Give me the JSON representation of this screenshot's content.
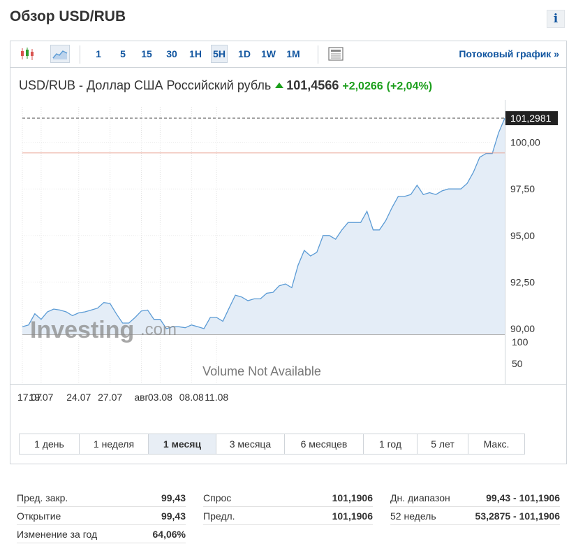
{
  "page": {
    "title": "Обзор USD/RUB",
    "info_label": "i"
  },
  "toolbar": {
    "intervals": [
      "1",
      "5",
      "15",
      "30",
      "1H",
      "5H",
      "1D",
      "1W",
      "1M"
    ],
    "active_interval": "5H",
    "stream_link": "Потоковый график »",
    "icons": [
      "candlestick-icon",
      "area-chart-icon",
      "news-icon"
    ]
  },
  "quote": {
    "name": "USD/RUB - Доллар США Российский рубль",
    "price": "101,4566",
    "change": "+2,0266",
    "change_pct": "(+2,04%)",
    "direction": "up"
  },
  "chart_data": {
    "type": "area",
    "x_labels": [
      "17.07",
      "19.07",
      "24.07",
      "27.07",
      "авг",
      "03.08",
      "08.08",
      "11.08"
    ],
    "x_label_index": [
      0,
      3,
      9,
      14,
      19,
      22,
      27,
      31
    ],
    "values": [
      90.1,
      90.2,
      90.8,
      90.5,
      90.9,
      91.05,
      91.0,
      90.9,
      90.7,
      90.85,
      90.9,
      91.0,
      91.1,
      91.4,
      91.35,
      90.8,
      90.3,
      90.3,
      90.6,
      90.95,
      91.0,
      90.5,
      90.5,
      90.0,
      90.1,
      90.1,
      90.05,
      90.2,
      90.1,
      90.0,
      90.6,
      90.6,
      90.4,
      91.1,
      91.8,
      91.7,
      91.5,
      91.6,
      91.6,
      91.9,
      91.95,
      92.3,
      92.4,
      92.2,
      93.4,
      94.2,
      93.9,
      94.1,
      95.0,
      95.0,
      94.8,
      95.3,
      95.7,
      95.7,
      95.7,
      96.3,
      95.3,
      95.3,
      95.8,
      96.5,
      97.1,
      97.1,
      97.2,
      97.7,
      97.2,
      97.3,
      97.2,
      97.4,
      97.5,
      97.5,
      97.5,
      97.8,
      98.4,
      99.2,
      99.4,
      99.4,
      100.5,
      101.2981
    ],
    "ylim": [
      89.7,
      101.9
    ],
    "y_ticks": [
      "100,00",
      "97,50",
      "95,00",
      "92,50",
      "90,00"
    ],
    "y_tick_values": [
      100.0,
      97.5,
      95.0,
      92.5,
      90.0
    ],
    "last_value_label": "101,2981",
    "reference_line": 99.43,
    "volume_ticks": [
      "100",
      "50"
    ],
    "volume_note": "Volume Not Available",
    "watermark_main": "Investing",
    "watermark_suffix": ".com",
    "colors": {
      "line": "#5b9bd5",
      "fill": "#e4edf7",
      "reference": "#e8a090",
      "last_label_bg": "#222222"
    }
  },
  "periods": {
    "items": [
      "1 день",
      "1 неделя",
      "1 месяц",
      "3 месяца",
      "6 месяцев",
      "1 год",
      "5 лет",
      "Макс."
    ],
    "active": "1 месяц"
  },
  "stats": {
    "col1": [
      {
        "label": "Пред. закр.",
        "value": "99,43"
      },
      {
        "label": "Открытие",
        "value": "99,43"
      },
      {
        "label": "Изменение за год",
        "value": "64,06%"
      }
    ],
    "col2": [
      {
        "label": "Спрос",
        "value": "101,1906"
      },
      {
        "label": "Предл.",
        "value": "101,1906"
      }
    ],
    "col3": [
      {
        "label": "Дн. диапазон",
        "value": "99,43 - 101,1906"
      },
      {
        "label": "52 недель",
        "value": "53,2875 - 101,1906"
      }
    ]
  }
}
